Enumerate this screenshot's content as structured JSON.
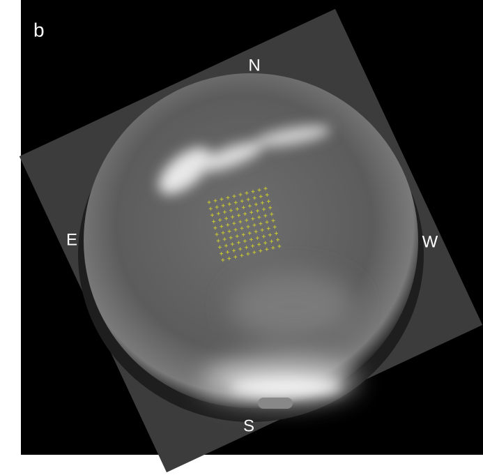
{
  "panel_label": "b",
  "directions": {
    "north": "N",
    "east": "E",
    "west": "W",
    "south": "S"
  }
}
